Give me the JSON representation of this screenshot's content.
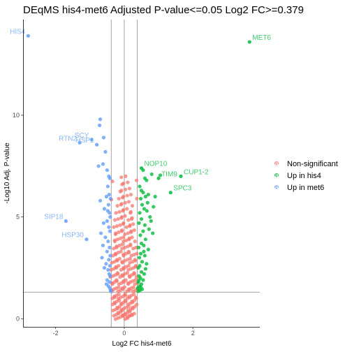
{
  "chart_data": {
    "type": "scatter",
    "title": "DEqMS his4-met6 Adjusted P-value<=0.05 Log2 FC>=0.379",
    "xlabel": "Log2 FC his4-met6",
    "ylabel": "-Log10 Adj. P-value",
    "xlim": [
      -2.95,
      3.95
    ],
    "ylim": [
      -0.4,
      14.7
    ],
    "x_ticks": [
      -2,
      0,
      2
    ],
    "y_ticks": [
      0,
      5,
      10
    ],
    "x_tick_labels": [
      "-2",
      "0",
      "2"
    ],
    "y_tick_labels": [
      "0",
      "5",
      "10"
    ],
    "grid": false,
    "legend_position": "right",
    "reference_lines": {
      "vertical": [
        -0.379,
        0,
        0.379
      ],
      "horizontal": [
        1.301
      ]
    },
    "series": [
      {
        "name": "Non-significant",
        "color": "#F8766D"
      },
      {
        "name": "Up in his4",
        "color": "#00BA38"
      },
      {
        "name": "Up in met6",
        "color": "#619CFF"
      }
    ],
    "labeled_points": [
      {
        "label": "HIS4",
        "x": -2.8,
        "y": 13.9,
        "group": 2
      },
      {
        "label": "MET6",
        "x": 3.65,
        "y": 13.6,
        "group": 1
      },
      {
        "label": "RTN2",
        "x": -1.3,
        "y": 8.65,
        "group": 2
      },
      {
        "label": "SCY",
        "x": -0.95,
        "y": 8.8,
        "group": 2
      },
      {
        "label": "HSP1",
        "x": -0.8,
        "y": 8.55,
        "group": 2
      },
      {
        "label": "NOP10",
        "x": 0.5,
        "y": 7.4,
        "group": 1
      },
      {
        "label": "CUP1-2",
        "x": 1.65,
        "y": 7.0,
        "group": 1
      },
      {
        "label": "TIM9",
        "x": 1.0,
        "y": 6.9,
        "group": 1
      },
      {
        "label": "SPC3",
        "x": 1.35,
        "y": 6.2,
        "group": 1
      },
      {
        "label": "SIP18",
        "x": -1.7,
        "y": 4.8,
        "group": 2
      },
      {
        "label": "HSP30",
        "x": -1.1,
        "y": 3.9,
        "group": 2
      }
    ],
    "points": {
      "Up in met6": [
        [
          -0.7,
          9.8
        ],
        [
          -0.72,
          9.5
        ],
        [
          -0.6,
          8.9
        ],
        [
          -0.55,
          8.2
        ],
        [
          -0.75,
          7.5
        ],
        [
          -0.62,
          7.6
        ],
        [
          -0.5,
          7.3
        ],
        [
          -0.45,
          7.0
        ],
        [
          -0.42,
          6.9
        ],
        [
          -0.48,
          6.5
        ],
        [
          -0.52,
          6.0
        ],
        [
          -0.44,
          6.1
        ],
        [
          -0.4,
          5.9
        ],
        [
          -0.46,
          5.6
        ],
        [
          -0.58,
          5.4
        ],
        [
          -0.43,
          5.2
        ],
        [
          -0.41,
          5.0
        ],
        [
          -0.5,
          4.8
        ],
        [
          -0.6,
          4.7
        ],
        [
          -0.45,
          4.5
        ],
        [
          -0.42,
          4.3
        ],
        [
          -0.55,
          4.0
        ],
        [
          -0.47,
          3.8
        ],
        [
          -0.62,
          3.6
        ],
        [
          -0.43,
          3.5
        ],
        [
          -0.5,
          3.3
        ],
        [
          -0.41,
          3.1
        ],
        [
          -0.45,
          2.9
        ],
        [
          -0.53,
          2.7
        ],
        [
          -0.42,
          2.6
        ],
        [
          -0.47,
          2.4
        ],
        [
          -0.44,
          2.2
        ],
        [
          -0.41,
          2.1
        ],
        [
          -0.5,
          1.9
        ],
        [
          -0.43,
          1.8
        ],
        [
          -0.46,
          1.6
        ],
        [
          -0.42,
          1.5
        ],
        [
          -0.4,
          1.4
        ],
        [
          -0.65,
          3.0
        ],
        [
          -0.7,
          5.8
        ],
        [
          -0.68,
          4.2
        ],
        [
          -0.58,
          2.5
        ],
        [
          -0.52,
          1.7
        ],
        [
          -0.39,
          1.35
        ],
        [
          -0.48,
          5.3
        ]
      ],
      "Up in his4": [
        [
          0.55,
          7.3
        ],
        [
          0.8,
          7.1
        ],
        [
          1.05,
          7.05
        ],
        [
          0.6,
          6.9
        ],
        [
          0.65,
          6.8
        ],
        [
          0.45,
          6.5
        ],
        [
          0.5,
          6.3
        ],
        [
          0.55,
          6.2
        ],
        [
          0.62,
          6.0
        ],
        [
          0.7,
          6.1
        ],
        [
          0.9,
          6.0
        ],
        [
          0.48,
          5.9
        ],
        [
          0.52,
          5.6
        ],
        [
          0.58,
          5.4
        ],
        [
          0.45,
          5.2
        ],
        [
          0.66,
          5.3
        ],
        [
          0.75,
          5.0
        ],
        [
          0.5,
          4.9
        ],
        [
          0.43,
          4.7
        ],
        [
          0.6,
          4.6
        ],
        [
          0.72,
          4.4
        ],
        [
          0.55,
          4.3
        ],
        [
          0.47,
          4.1
        ],
        [
          0.83,
          4.2
        ],
        [
          0.62,
          3.9
        ],
        [
          0.5,
          3.7
        ],
        [
          0.42,
          3.5
        ],
        [
          0.57,
          3.6
        ],
        [
          0.7,
          3.4
        ],
        [
          0.48,
          3.2
        ],
        [
          0.44,
          3.0
        ],
        [
          0.6,
          3.1
        ],
        [
          0.52,
          2.8
        ],
        [
          0.45,
          2.6
        ],
        [
          0.65,
          2.7
        ],
        [
          0.41,
          2.5
        ],
        [
          0.5,
          2.3
        ],
        [
          0.58,
          2.2
        ],
        [
          0.43,
          2.1
        ],
        [
          0.47,
          2.0
        ],
        [
          0.55,
          1.9
        ],
        [
          0.41,
          1.8
        ],
        [
          0.5,
          1.7
        ],
        [
          0.44,
          1.6
        ],
        [
          0.39,
          1.5
        ],
        [
          0.46,
          1.4
        ],
        [
          0.52,
          1.45
        ],
        [
          0.62,
          2.45
        ],
        [
          0.68,
          5.7
        ],
        [
          0.78,
          4.8
        ],
        [
          0.41,
          1.35
        ],
        [
          0.48,
          1.55
        ],
        [
          0.43,
          1.9
        ],
        [
          0.57,
          3.3
        ],
        [
          0.85,
          5.5
        ]
      ]
    },
    "nonsignificant_rows": [
      {
        "y": 7.05,
        "half_width": 0.05,
        "n": 2
      },
      {
        "y": 6.7,
        "half_width": 0.1,
        "n": 3
      },
      {
        "y": 6.35,
        "half_width": 0.14,
        "n": 4
      },
      {
        "y": 6.0,
        "half_width": 0.17,
        "n": 5
      },
      {
        "y": 5.65,
        "half_width": 0.2,
        "n": 6
      },
      {
        "y": 5.3,
        "half_width": 0.23,
        "n": 7
      },
      {
        "y": 4.95,
        "half_width": 0.25,
        "n": 8
      },
      {
        "y": 4.6,
        "half_width": 0.27,
        "n": 9
      },
      {
        "y": 4.25,
        "half_width": 0.29,
        "n": 10
      },
      {
        "y": 3.9,
        "half_width": 0.3,
        "n": 11
      },
      {
        "y": 3.55,
        "half_width": 0.32,
        "n": 12
      },
      {
        "y": 3.2,
        "half_width": 0.33,
        "n": 13
      },
      {
        "y": 2.85,
        "half_width": 0.35,
        "n": 14
      },
      {
        "y": 2.5,
        "half_width": 0.36,
        "n": 15
      },
      {
        "y": 2.15,
        "half_width": 0.37,
        "n": 16
      },
      {
        "y": 1.8,
        "half_width": 0.38,
        "n": 17
      },
      {
        "y": 1.45,
        "half_width": 0.38,
        "n": 18
      },
      {
        "y": 1.1,
        "half_width": 0.36,
        "n": 17
      },
      {
        "y": 0.8,
        "half_width": 0.34,
        "n": 16
      },
      {
        "y": 0.5,
        "half_width": 0.32,
        "n": 15
      },
      {
        "y": 0.25,
        "half_width": 0.28,
        "n": 13
      },
      {
        "y": 0.08,
        "half_width": 0.22,
        "n": 10
      },
      {
        "y": 6.85,
        "half_width": 0.38,
        "n": 2
      },
      {
        "y": 5.95,
        "half_width": 0.4,
        "n": 2
      }
    ]
  }
}
